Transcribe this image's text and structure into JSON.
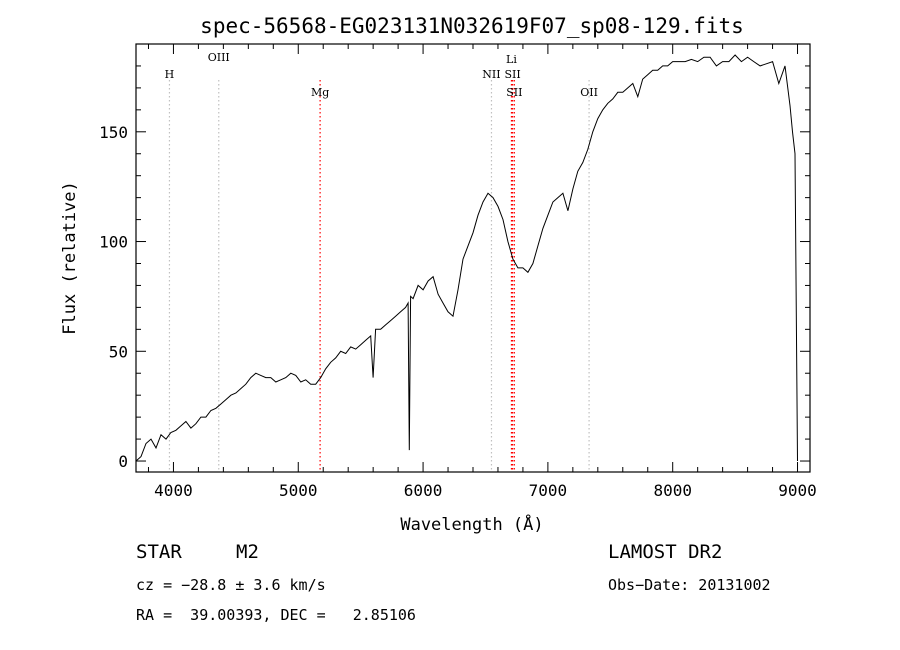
{
  "chart_data": {
    "type": "line",
    "title": "spec-56568-EG023131N032619F07_sp08-129.fits",
    "xlabel": "Wavelength (Å)",
    "ylabel": "Flux (relative)",
    "xlim": [
      3700,
      9100
    ],
    "ylim": [
      -5,
      190
    ],
    "x_ticks": [
      4000,
      5000,
      6000,
      7000,
      8000,
      9000
    ],
    "y_ticks": [
      0,
      50,
      100,
      150
    ],
    "grid": false,
    "series": [
      {
        "x": [
          3700,
          3740,
          3780,
          3820,
          3860,
          3900,
          3940,
          3980,
          4020,
          4060,
          4100,
          4140,
          4180,
          4220,
          4260,
          4300,
          4340,
          4380,
          4420,
          4460,
          4500,
          4540,
          4580,
          4620,
          4660,
          4700,
          4740,
          4780,
          4820,
          4860,
          4900,
          4940,
          4980,
          5020,
          5060,
          5100,
          5140,
          5180,
          5220,
          5260,
          5300,
          5340,
          5380,
          5420,
          5460,
          5500,
          5540,
          5580,
          5600,
          5620,
          5660,
          5700,
          5740,
          5780,
          5820,
          5860,
          5880,
          5890,
          5900,
          5920,
          5960,
          6000,
          6040,
          6080,
          6120,
          6160,
          6200,
          6240,
          6280,
          6320,
          6360,
          6400,
          6440,
          6480,
          6520,
          6560,
          6600,
          6640,
          6680,
          6720,
          6760,
          6800,
          6840,
          6880,
          6920,
          6960,
          7000,
          7040,
          7080,
          7120,
          7160,
          7200,
          7240,
          7280,
          7320,
          7360,
          7400,
          7440,
          7480,
          7520,
          7560,
          7600,
          7640,
          7680,
          7720,
          7760,
          7800,
          7840,
          7880,
          7920,
          7960,
          8000,
          8050,
          8100,
          8150,
          8200,
          8250,
          8300,
          8350,
          8400,
          8450,
          8500,
          8550,
          8600,
          8650,
          8700,
          8750,
          8800,
          8850,
          8900,
          8940,
          8960,
          8980,
          9000
        ],
        "y": [
          0,
          2,
          8,
          10,
          6,
          12,
          10,
          13,
          14,
          16,
          18,
          15,
          17,
          20,
          20,
          23,
          24,
          26,
          28,
          30,
          31,
          33,
          35,
          38,
          40,
          39,
          38,
          38,
          36,
          37,
          38,
          40,
          39,
          36,
          37,
          35,
          35,
          38,
          42,
          45,
          47,
          50,
          49,
          52,
          51,
          53,
          55,
          57,
          38,
          60,
          60,
          62,
          64,
          66,
          68,
          70,
          72,
          5,
          75,
          74,
          80,
          78,
          82,
          84,
          76,
          72,
          68,
          66,
          78,
          92,
          98,
          104,
          112,
          118,
          122,
          120,
          116,
          110,
          100,
          92,
          88,
          88,
          86,
          90,
          98,
          106,
          112,
          118,
          120,
          122,
          114,
          124,
          132,
          136,
          142,
          150,
          156,
          160,
          163,
          165,
          168,
          168,
          170,
          172,
          166,
          174,
          176,
          178,
          178,
          180,
          180,
          182,
          182,
          182,
          183,
          182,
          184,
          184,
          180,
          182,
          182,
          185,
          182,
          184,
          182,
          180,
          181,
          182,
          172,
          180,
          162,
          150,
          140,
          0
        ]
      }
    ],
    "annotations": [
      {
        "label": "H",
        "x": 3968,
        "color": "#c0c0c0"
      },
      {
        "label": "OIII",
        "x": 4363,
        "color": "#c0c0c0"
      },
      {
        "label": "Mg",
        "x": 5175,
        "color": "#ff0000"
      },
      {
        "label": "NII",
        "x": 6548,
        "color": "#c0c0c0"
      },
      {
        "label": "Li",
        "x": 6708,
        "color": "#ff0000"
      },
      {
        "label": "SII",
        "x": 6717,
        "color": "#ff0000"
      },
      {
        "label": "SII",
        "x": 6731,
        "color": "#ff0000"
      },
      {
        "label": "OII",
        "x": 7330,
        "color": "#c0c0c0"
      }
    ]
  },
  "info": {
    "object_class": "STAR",
    "subclass": "M2",
    "survey": "LAMOST DR2",
    "cz": "cz = −28.8 ± 3.6 km/s",
    "obs_date": "Obs−Date: 20131002",
    "coords": "RA =  39.00393, DEC =   2.85106"
  }
}
